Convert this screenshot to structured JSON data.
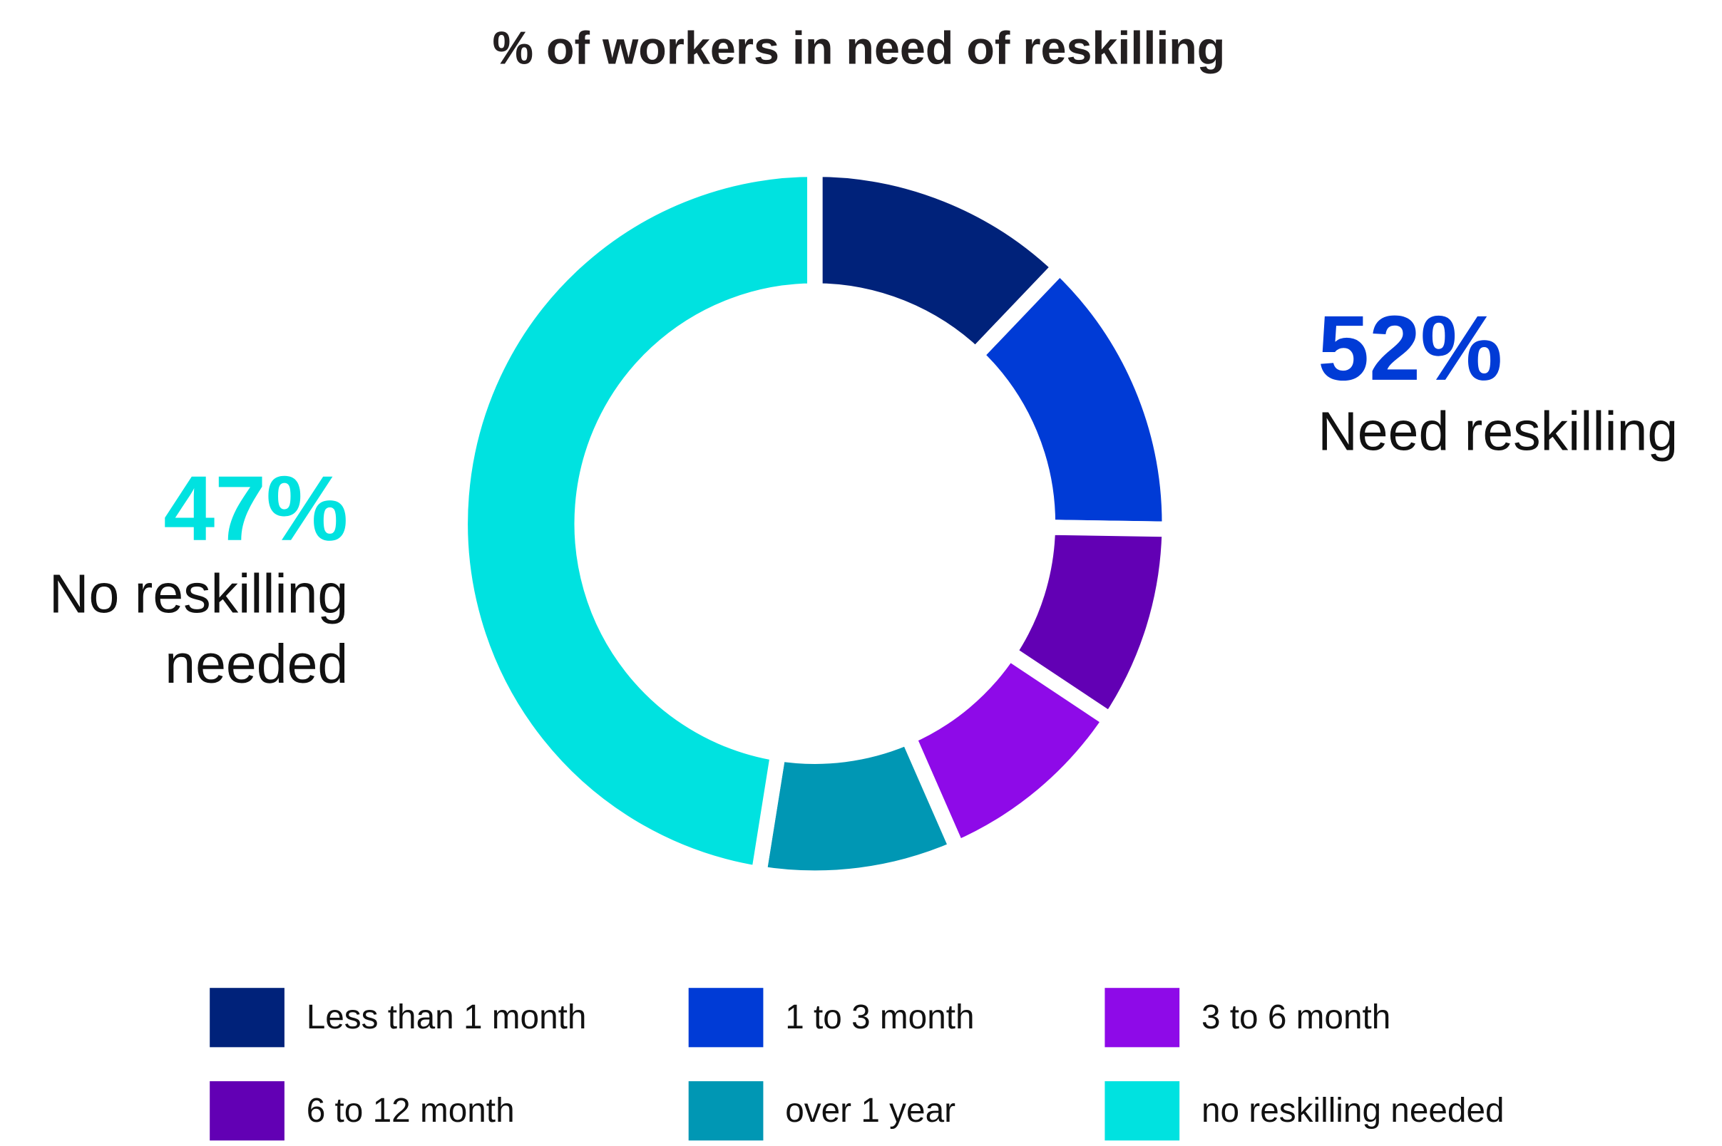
{
  "chart_data": {
    "type": "pie",
    "donut": true,
    "title": "% of workers in need of reskilling",
    "slices": [
      {
        "label": "Less than 1 month",
        "value": 12,
        "color": "#00227a"
      },
      {
        "label": "1 to 3 month",
        "value": 13,
        "color": "#003bd6"
      },
      {
        "label": "6 to 12 month",
        "value": 9,
        "color": "#6200b4"
      },
      {
        "label": "3 to 6 month",
        "value": 9,
        "color": "#8e0ae8"
      },
      {
        "label": "over 1 year",
        "value": 9,
        "color": "#0097b4"
      },
      {
        "label": "no reskilling needed",
        "value": 47,
        "color": "#00e2e0"
      }
    ],
    "legend": [
      {
        "label": "Less than 1 month",
        "color": "#00227a"
      },
      {
        "label": "1 to 3 month",
        "color": "#003bd6"
      },
      {
        "label": "3 to 6 month",
        "color": "#8e0ae8"
      },
      {
        "label": "6 to 12 month",
        "color": "#6200b4"
      },
      {
        "label": "over 1 year",
        "color": "#0097b4"
      },
      {
        "label": "no reskilling needed",
        "color": "#00e2e0"
      }
    ],
    "legend_position": "bottom",
    "annotations": {
      "need": {
        "value": "52%",
        "label": "Need reskilling",
        "color": "#003bd6"
      },
      "no_need": {
        "value": "47%",
        "label_line1": "No reskilling",
        "label_line2": "needed",
        "color": "#00e2e0"
      }
    }
  }
}
